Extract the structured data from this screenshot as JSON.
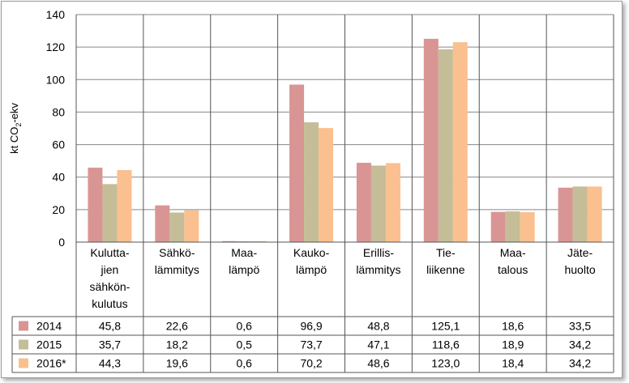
{
  "chart_data": {
    "type": "bar",
    "ylabel": "kt CO",
    "ylabel_sub": "2",
    "ylabel_tail": "-ekv",
    "ylim": [
      0,
      140
    ],
    "yticks": [
      "0",
      "20",
      "40",
      "60",
      "80",
      "100",
      "120",
      "140"
    ],
    "grid": true,
    "legend": "data-table",
    "categories": [
      [
        "Kulutta-",
        "jien",
        "sähkön-",
        "kulutus"
      ],
      [
        "Sähkö-",
        "lämmitys"
      ],
      [
        "Maa-",
        "lämpö"
      ],
      [
        "Kauko-",
        "lämpö"
      ],
      [
        "Erillis-",
        "lämmitys"
      ],
      [
        "Tie-",
        "liikenne"
      ],
      [
        "Maa-",
        "talous"
      ],
      [
        "Jäte-",
        "huolto"
      ]
    ],
    "series": [
      {
        "name": "2014",
        "color": "#d99594",
        "values": [
          45.8,
          22.6,
          0.6,
          96.9,
          48.8,
          125.1,
          18.6,
          33.5
        ],
        "labels": [
          "45,8",
          "22,6",
          "0,6",
          "96,9",
          "48,8",
          "125,1",
          "18,6",
          "33,5"
        ]
      },
      {
        "name": "2015",
        "color": "#c4bd97",
        "values": [
          35.7,
          18.2,
          0.5,
          73.7,
          47.1,
          118.6,
          18.9,
          34.2
        ],
        "labels": [
          "35,7",
          "18,2",
          "0,5",
          "73,7",
          "47,1",
          "118,6",
          "18,9",
          "34,2"
        ]
      },
      {
        "name": "2016*",
        "color": "#fac08f",
        "values": [
          44.3,
          19.6,
          0.6,
          70.2,
          48.6,
          123.0,
          18.4,
          34.2
        ],
        "labels": [
          "44,3",
          "19,6",
          "0,6",
          "70,2",
          "48,6",
          "123,0",
          "18,4",
          "34,2"
        ]
      }
    ]
  }
}
